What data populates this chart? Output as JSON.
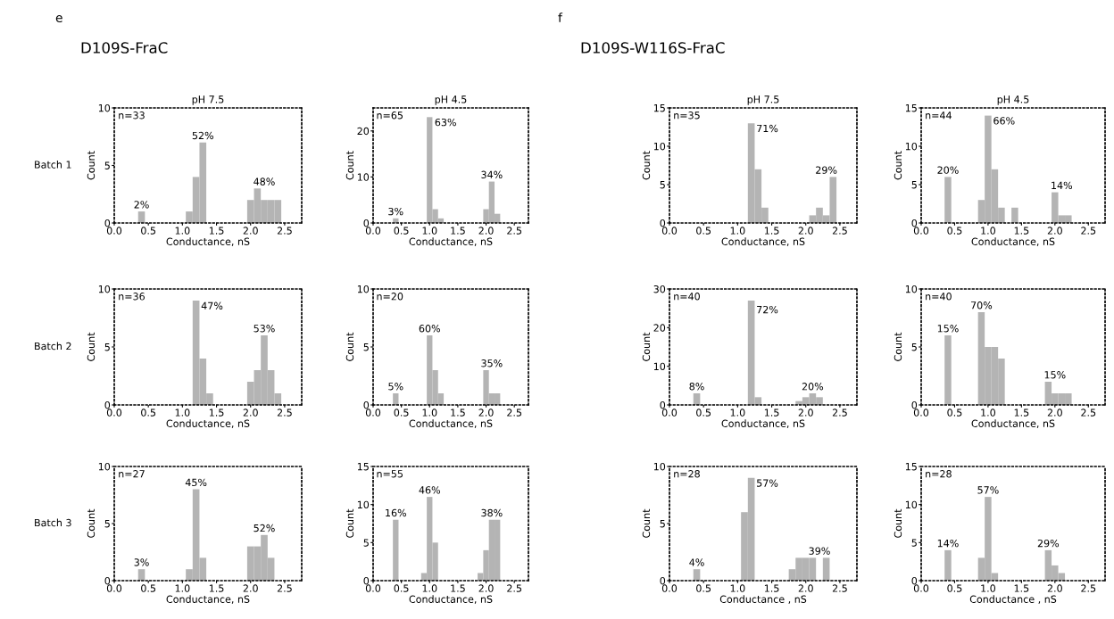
{
  "chart_data": [
    {
      "type": "histogram",
      "title": "pH 7.5",
      "xlabel": "Conductance, nS",
      "ylabel": "Count",
      "bins": [
        0.05,
        0.15,
        0.25,
        0.35,
        0.45,
        0.55,
        0.65,
        0.75,
        0.85,
        0.95,
        1.05,
        1.15,
        1.25,
        1.35,
        1.45,
        1.55,
        1.65,
        1.75,
        1.85,
        1.95,
        2.05,
        2.15,
        2.25,
        2.35,
        2.45,
        2.55,
        2.65
      ],
      "xlim": [
        0,
        2.75
      ],
      "xticks": [
        {
          "value": 0,
          "label": "0.0"
        },
        0.5,
        {
          "value": 1,
          "label": "1.0"
        },
        1.5,
        {
          "value": 2,
          "label": "2.0"
        },
        2.5
      ],
      "ylim": [
        0,
        10
      ],
      "yticks": [
        0,
        5,
        10
      ],
      "grid": false,
      "series": [
        {
          "color": "#b4b4b4",
          "values": [
            0,
            0,
            0,
            1,
            0,
            0,
            0,
            0,
            0,
            0,
            1,
            4,
            7,
            0,
            0,
            0,
            0,
            0,
            0,
            2,
            3,
            2,
            2,
            2,
            0,
            0
          ]
        }
      ],
      "annotations": [
        "n=33",
        "e",
        "D109S-FraC",
        "Batch 1",
        {
          "text": "2%",
          "x": 0.4,
          "y": 1
        },
        {
          "text": "52%",
          "x": 1.3,
          "y": 7
        },
        {
          "text": "48%",
          "x": 2.2,
          "y": 3
        }
      ]
    },
    {
      "type": "histogram",
      "title": "pH 4.5",
      "xlabel": "Conductance, nS",
      "ylabel": "Count",
      "bins": [
        0.05,
        0.15,
        0.25,
        0.35,
        0.45,
        0.55,
        0.65,
        0.75,
        0.85,
        0.95,
        1.05,
        1.15,
        1.25,
        1.35,
        1.45,
        1.55,
        1.65,
        1.75,
        1.85,
        1.95,
        2.05,
        2.15,
        2.25,
        2.35,
        2.45,
        2.55,
        2.65
      ],
      "xlim": [
        0,
        2.75
      ],
      "xticks": [
        {
          "value": 0,
          "label": "0.0"
        },
        0.5,
        {
          "value": 1,
          "label": "1.0"
        },
        1.5,
        {
          "value": 2,
          "label": "2.0"
        },
        2.5
      ],
      "ylim": [
        0,
        25
      ],
      "yticks": [
        0,
        10,
        20
      ],
      "grid": false,
      "series": [
        {
          "color": "#b4b4b4",
          "values": [
            0,
            0,
            0,
            1,
            0,
            0,
            0,
            0,
            0,
            23,
            3,
            1,
            0,
            0,
            0,
            0,
            0,
            0,
            0,
            3,
            9,
            2,
            0,
            0,
            0,
            0
          ]
        }
      ],
      "annotations": [
        "n=65",
        {
          "text": "3%",
          "x": 0.4,
          "y": 1
        },
        {
          "text": "63%",
          "x": 1.0,
          "y": 23
        },
        {
          "text": "34%",
          "x": 2.1,
          "y": 9
        }
      ]
    },
    {
      "type": "histogram",
      "xlabel": "Conductance, nS",
      "ylabel": "Count",
      "bins": [
        0.05,
        0.15,
        0.25,
        0.35,
        0.45,
        0.55,
        0.65,
        0.75,
        0.85,
        0.95,
        1.05,
        1.15,
        1.25,
        1.35,
        1.45,
        1.55,
        1.65,
        1.75,
        1.85,
        1.95,
        2.05,
        2.15,
        2.25,
        2.35,
        2.45,
        2.55,
        2.65
      ],
      "xlim": [
        0,
        2.75
      ],
      "xticks": [
        {
          "value": 0,
          "label": "0.0"
        },
        0.5,
        {
          "value": 1,
          "label": "1.0"
        },
        1.5,
        {
          "value": 2,
          "label": "2.0"
        },
        2.5
      ],
      "ylim": [
        0,
        10
      ],
      "yticks": [
        0,
        5,
        10
      ],
      "grid": false,
      "series": [
        {
          "color": "#b4b4b4",
          "values": [
            0,
            0,
            0,
            0,
            0,
            0,
            0,
            0,
            0,
            0,
            0,
            9,
            4,
            1,
            0,
            0,
            0,
            0,
            0,
            2,
            3,
            6,
            3,
            1,
            0,
            0
          ]
        }
      ],
      "annotations": [
        "n=36",
        "Batch 2",
        {
          "text": "47%",
          "x": 1.2,
          "y": 9
        },
        {
          "text": "53%",
          "x": 2.2,
          "y": 6
        }
      ]
    },
    {
      "type": "histogram",
      "xlabel": "Conductance, nS",
      "ylabel": "Count",
      "bins": [
        0.05,
        0.15,
        0.25,
        0.35,
        0.45,
        0.55,
        0.65,
        0.75,
        0.85,
        0.95,
        1.05,
        1.15,
        1.25,
        1.35,
        1.45,
        1.55,
        1.65,
        1.75,
        1.85,
        1.95,
        2.05,
        2.15,
        2.25,
        2.35,
        2.45,
        2.55,
        2.65
      ],
      "xlim": [
        0,
        2.75
      ],
      "xticks": [
        {
          "value": 0,
          "label": "0.0"
        },
        0.5,
        {
          "value": 1,
          "label": "1.0"
        },
        1.5,
        {
          "value": 2,
          "label": "2.0"
        },
        2.5
      ],
      "ylim": [
        0,
        10
      ],
      "yticks": [
        0,
        5,
        10
      ],
      "grid": false,
      "series": [
        {
          "color": "#b4b4b4",
          "values": [
            0,
            0,
            0,
            1,
            0,
            0,
            0,
            0,
            0,
            6,
            3,
            1,
            0,
            0,
            0,
            0,
            0,
            0,
            0,
            3,
            1,
            1,
            0,
            0,
            0,
            0
          ]
        }
      ],
      "annotations": [
        "n=20",
        {
          "text": "5%",
          "x": 0.4,
          "y": 1
        },
        {
          "text": "60%",
          "x": 1.0,
          "y": 6
        },
        {
          "text": "35%",
          "x": 2.1,
          "y": 3
        }
      ]
    },
    {
      "type": "histogram",
      "xlabel": "Conductance, nS",
      "ylabel": "Count",
      "bins": [
        0.05,
        0.15,
        0.25,
        0.35,
        0.45,
        0.55,
        0.65,
        0.75,
        0.85,
        0.95,
        1.05,
        1.15,
        1.25,
        1.35,
        1.45,
        1.55,
        1.65,
        1.75,
        1.85,
        1.95,
        2.05,
        2.15,
        2.25,
        2.35,
        2.45,
        2.55,
        2.65
      ],
      "xlim": [
        0,
        2.75
      ],
      "xticks": [
        {
          "value": 0,
          "label": "0.0"
        },
        0.5,
        {
          "value": 1,
          "label": "1.0"
        },
        1.5,
        {
          "value": 2,
          "label": "2.0"
        },
        2.5
      ],
      "ylim": [
        0,
        10
      ],
      "yticks": [
        0,
        5,
        10
      ],
      "grid": false,
      "series": [
        {
          "color": "#b4b4b4",
          "values": [
            0,
            0,
            0,
            1,
            0,
            0,
            0,
            0,
            0,
            0,
            1,
            8,
            2,
            0,
            0,
            0,
            0,
            0,
            0,
            3,
            3,
            4,
            2,
            0,
            0,
            0
          ]
        }
      ],
      "annotations": [
        "n=27",
        "Batch 3",
        {
          "text": "3%",
          "x": 0.4,
          "y": 1
        },
        {
          "text": "45%",
          "x": 1.2,
          "y": 8
        },
        {
          "text": "52%",
          "x": 2.2,
          "y": 4
        }
      ]
    },
    {
      "type": "histogram",
      "xlabel": "Conductance, nS",
      "ylabel": "Count",
      "bins": [
        0.05,
        0.15,
        0.25,
        0.35,
        0.45,
        0.55,
        0.65,
        0.75,
        0.85,
        0.95,
        1.05,
        1.15,
        1.25,
        1.35,
        1.45,
        1.55,
        1.65,
        1.75,
        1.85,
        1.95,
        2.05,
        2.15,
        2.25,
        2.35,
        2.45,
        2.55,
        2.65
      ],
      "xlim": [
        0,
        2.75
      ],
      "xticks": [
        {
          "value": 0,
          "label": "0.0"
        },
        0.5,
        {
          "value": 1,
          "label": "1.0"
        },
        1.5,
        {
          "value": 2,
          "label": "2.0"
        },
        2.5
      ],
      "ylim": [
        0,
        15
      ],
      "yticks": [
        0,
        5,
        10,
        15
      ],
      "grid": false,
      "series": [
        {
          "color": "#b4b4b4",
          "values": [
            0,
            0,
            0,
            8,
            0,
            0,
            0,
            0,
            1,
            11,
            5,
            0,
            0,
            0,
            0,
            0,
            0,
            0,
            1,
            4,
            8,
            8,
            0,
            0,
            0,
            0
          ]
        }
      ],
      "annotations": [
        "n=55",
        {
          "text": "16%",
          "x": 0.4,
          "y": 8
        },
        {
          "text": "46%",
          "x": 1.0,
          "y": 11
        },
        {
          "text": "38%",
          "x": 2.1,
          "y": 8
        }
      ]
    },
    {
      "type": "histogram",
      "title": "pH 7.5",
      "xlabel": "Conductance, nS",
      "ylabel": "Count",
      "bins": [
        0.05,
        0.15,
        0.25,
        0.35,
        0.45,
        0.55,
        0.65,
        0.75,
        0.85,
        0.95,
        1.05,
        1.15,
        1.25,
        1.35,
        1.45,
        1.55,
        1.65,
        1.75,
        1.85,
        1.95,
        2.05,
        2.15,
        2.25,
        2.35,
        2.45,
        2.55,
        2.65
      ],
      "xlim": [
        0,
        2.75
      ],
      "xticks": [
        {
          "value": 0,
          "label": "0.0"
        },
        0.5,
        {
          "value": 1,
          "label": "1.0"
        },
        1.5,
        {
          "value": 2,
          "label": "2.0"
        },
        2.5
      ],
      "ylim": [
        0,
        15
      ],
      "yticks": [
        0,
        5,
        10,
        15
      ],
      "grid": false,
      "series": [
        {
          "color": "#b4b4b4",
          "values": [
            0,
            0,
            0,
            0,
            0,
            0,
            0,
            0,
            0,
            0,
            0,
            13,
            7,
            2,
            0,
            0,
            0,
            0,
            0,
            0,
            1,
            2,
            1,
            6,
            0,
            0
          ]
        }
      ],
      "annotations": [
        "n=35",
        "f",
        "D109S-W116S-FraC",
        {
          "text": "71%",
          "x": 1.2,
          "y": 13
        },
        {
          "text": "29%",
          "x": 2.3,
          "y": 6
        }
      ]
    },
    {
      "type": "histogram",
      "title": "pH 4.5",
      "xlabel": "Conductance, nS",
      "ylabel": "Count",
      "bins": [
        0.05,
        0.15,
        0.25,
        0.35,
        0.45,
        0.55,
        0.65,
        0.75,
        0.85,
        0.95,
        1.05,
        1.15,
        1.25,
        1.35,
        1.45,
        1.55,
        1.65,
        1.75,
        1.85,
        1.95,
        2.05,
        2.15,
        2.25,
        2.35,
        2.45,
        2.55,
        2.65
      ],
      "xlim": [
        0,
        2.75
      ],
      "xticks": [
        {
          "value": 0,
          "label": "0.0"
        },
        0.5,
        {
          "value": 1,
          "label": "1.0"
        },
        1.5,
        {
          "value": 2,
          "label": "2.0"
        },
        2.5
      ],
      "ylim": [
        0,
        15
      ],
      "yticks": [
        0,
        5,
        10,
        15
      ],
      "grid": false,
      "series": [
        {
          "color": "#b4b4b4",
          "values": [
            0,
            0,
            0,
            6,
            0,
            0,
            0,
            0,
            3,
            14,
            7,
            2,
            0,
            2,
            0,
            0,
            0,
            0,
            0,
            4,
            1,
            1,
            0,
            0,
            0,
            0
          ]
        }
      ],
      "annotations": [
        "n=44",
        {
          "text": "20%",
          "x": 0.4,
          "y": 6
        },
        {
          "text": "66%",
          "x": 1.0,
          "y": 14
        },
        {
          "text": "14%",
          "x": 2.1,
          "y": 4
        }
      ]
    },
    {
      "type": "histogram",
      "xlabel": "Conductance, nS",
      "ylabel": "Count",
      "bins": [
        0.05,
        0.15,
        0.25,
        0.35,
        0.45,
        0.55,
        0.65,
        0.75,
        0.85,
        0.95,
        1.05,
        1.15,
        1.25,
        1.35,
        1.45,
        1.55,
        1.65,
        1.75,
        1.85,
        1.95,
        2.05,
        2.15,
        2.25,
        2.35,
        2.45,
        2.55,
        2.65
      ],
      "xlim": [
        0,
        2.75
      ],
      "xticks": [
        {
          "value": 0,
          "label": "0.0"
        },
        0.5,
        {
          "value": 1,
          "label": "1.0"
        },
        1.5,
        {
          "value": 2,
          "label": "2.0"
        },
        2.5
      ],
      "ylim": [
        0,
        30
      ],
      "yticks": [
        0,
        10,
        20,
        30
      ],
      "grid": false,
      "series": [
        {
          "color": "#b4b4b4",
          "values": [
            0,
            0,
            0,
            3,
            0,
            0,
            0,
            0,
            0,
            0,
            0,
            27,
            2,
            0,
            0,
            0,
            0,
            0,
            1,
            2,
            3,
            2,
            0,
            0,
            0,
            0
          ]
        }
      ],
      "annotations": [
        "n=40",
        {
          "text": "8%",
          "x": 0.4,
          "y": 3
        },
        {
          "text": "72%",
          "x": 1.2,
          "y": 26
        },
        {
          "text": "20%",
          "x": 2.1,
          "y": 3
        }
      ]
    },
    {
      "type": "histogram",
      "xlabel": "Conductance, nS",
      "ylabel": "Count",
      "bins": [
        0.05,
        0.15,
        0.25,
        0.35,
        0.45,
        0.55,
        0.65,
        0.75,
        0.85,
        0.95,
        1.05,
        1.15,
        1.25,
        1.35,
        1.45,
        1.55,
        1.65,
        1.75,
        1.85,
        1.95,
        2.05,
        2.15,
        2.25,
        2.35,
        2.45,
        2.55,
        2.65
      ],
      "xlim": [
        0,
        2.75
      ],
      "xticks": [
        {
          "value": 0,
          "label": "0.0"
        },
        0.5,
        {
          "value": 1,
          "label": "1.0"
        },
        1.5,
        {
          "value": 2,
          "label": "2.0"
        },
        2.5
      ],
      "ylim": [
        0,
        10
      ],
      "yticks": [
        0,
        5,
        10
      ],
      "grid": false,
      "series": [
        {
          "color": "#b4b4b4",
          "values": [
            0,
            0,
            0,
            6,
            0,
            0,
            0,
            0,
            8,
            5,
            5,
            4,
            0,
            0,
            0,
            0,
            0,
            0,
            2,
            1,
            1,
            1,
            0,
            0,
            0,
            0
          ]
        }
      ],
      "annotations": [
        "n=40",
        {
          "text": "15%",
          "x": 0.4,
          "y": 6
        },
        {
          "text": "70%",
          "x": 0.9,
          "y": 8
        },
        {
          "text": "15%",
          "x": 2.0,
          "y": 2
        }
      ]
    },
    {
      "type": "histogram",
      "xlabel": "Conductance , nS",
      "ylabel": "Count",
      "bins": [
        0.05,
        0.15,
        0.25,
        0.35,
        0.45,
        0.55,
        0.65,
        0.75,
        0.85,
        0.95,
        1.05,
        1.15,
        1.25,
        1.35,
        1.45,
        1.55,
        1.65,
        1.75,
        1.85,
        1.95,
        2.05,
        2.15,
        2.25,
        2.35,
        2.45,
        2.55,
        2.65
      ],
      "xlim": [
        0,
        2.75
      ],
      "xticks": [
        {
          "value": 0,
          "label": "0.0"
        },
        0.5,
        {
          "value": 1,
          "label": "1.0"
        },
        1.5,
        {
          "value": 2,
          "label": "2.0"
        },
        2.5
      ],
      "ylim": [
        0,
        10
      ],
      "yticks": [
        0,
        5,
        10
      ],
      "grid": false,
      "series": [
        {
          "color": "#b4b4b4",
          "values": [
            0,
            0,
            0,
            1,
            0,
            0,
            0,
            0,
            0,
            0,
            6,
            9,
            0,
            0,
            0,
            0,
            0,
            1,
            2,
            2,
            2,
            0,
            2,
            0,
            0,
            0
          ]
        }
      ],
      "annotations": [
        "n=28",
        {
          "text": "4%",
          "x": 0.4,
          "y": 1
        },
        {
          "text": "57%",
          "x": 1.2,
          "y": 9
        },
        {
          "text": "39%",
          "x": 2.2,
          "y": 2
        }
      ]
    },
    {
      "type": "histogram",
      "xlabel": "Conductance , nS",
      "ylabel": "Count",
      "bins": [
        0.05,
        0.15,
        0.25,
        0.35,
        0.45,
        0.55,
        0.65,
        0.75,
        0.85,
        0.95,
        1.05,
        1.15,
        1.25,
        1.35,
        1.45,
        1.55,
        1.65,
        1.75,
        1.85,
        1.95,
        2.05,
        2.15,
        2.25,
        2.35,
        2.45,
        2.55,
        2.65
      ],
      "xlim": [
        0,
        2.75
      ],
      "xticks": [
        {
          "value": 0,
          "label": "0.0"
        },
        0.5,
        {
          "value": 1,
          "label": "1.0"
        },
        1.5,
        {
          "value": 2,
          "label": "2.0"
        },
        2.5
      ],
      "ylim": [
        0,
        15
      ],
      "yticks": [
        0,
        5,
        10,
        15
      ],
      "grid": false,
      "series": [
        {
          "color": "#b4b4b4",
          "values": [
            0,
            0,
            0,
            4,
            0,
            0,
            0,
            0,
            3,
            11,
            1,
            0,
            0,
            0,
            0,
            0,
            0,
            0,
            4,
            2,
            1,
            0,
            0,
            0,
            0,
            0
          ]
        }
      ],
      "annotations": [
        "n=28",
        {
          "text": "14%",
          "x": 0.4,
          "y": 4
        },
        {
          "text": "57%",
          "x": 1.0,
          "y": 11
        },
        {
          "text": "29%",
          "x": 1.9,
          "y": 4
        }
      ]
    }
  ]
}
